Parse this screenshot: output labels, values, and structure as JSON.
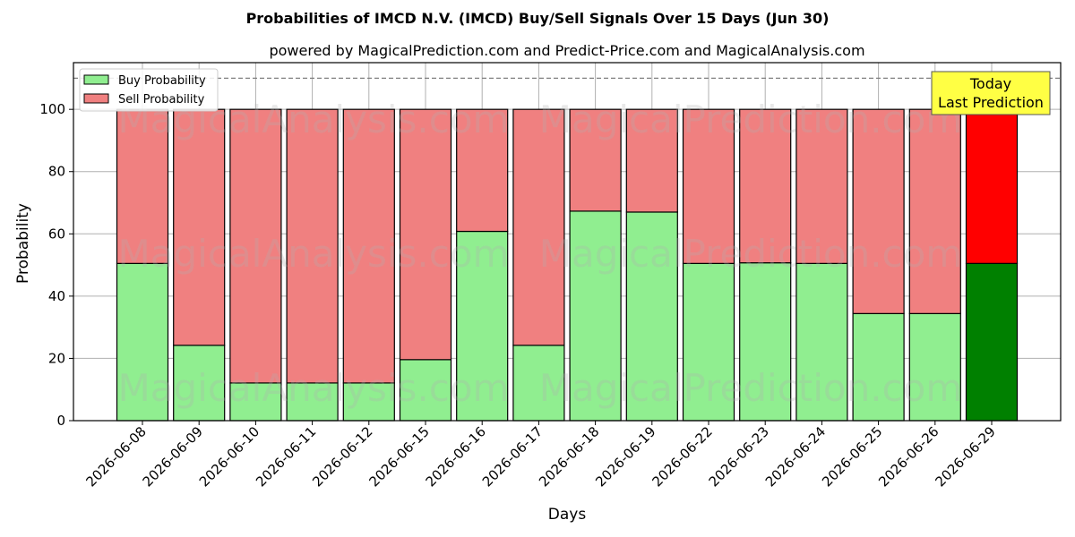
{
  "chart_data": {
    "type": "bar",
    "stacked": true,
    "title": "Probabilities of IMCD N.V. (IMCD) Buy/Sell Signals Over 15 Days (Jun 30)",
    "subtitle": "powered by MagicalPrediction.com and Predict-Price.com and MagicalAnalysis.com",
    "xlabel": "Days",
    "ylabel": "Probability",
    "ylim": [
      0,
      115
    ],
    "yticks": [
      0,
      20,
      40,
      60,
      80,
      100
    ],
    "grid": true,
    "legend_placement": "top-left",
    "reference_line": 110,
    "categories": [
      "2026-06-08",
      "2026-06-09",
      "2026-06-10",
      "2026-06-11",
      "2026-06-12",
      "2026-06-15",
      "2026-06-16",
      "2026-06-17",
      "2026-06-18",
      "2026-06-19",
      "2026-06-22",
      "2026-06-23",
      "2026-06-24",
      "2026-06-25",
      "2026-06-26",
      "2026-06-29"
    ],
    "series": [
      {
        "name": "Buy Probability",
        "color": "#90ee90",
        "highlight_color": "#008000",
        "values": [
          50.5,
          24.2,
          12.1,
          12.1,
          12.1,
          19.6,
          60.8,
          24.2,
          67.3,
          67.0,
          50.5,
          50.7,
          50.5,
          34.4,
          34.4,
          50.5
        ]
      },
      {
        "name": "Sell Probability",
        "color": "#f08080",
        "highlight_color": "#ff0000",
        "values": [
          49.5,
          75.8,
          87.9,
          87.9,
          87.9,
          80.4,
          39.2,
          75.8,
          32.7,
          33.0,
          49.5,
          49.3,
          49.5,
          65.6,
          65.6,
          49.5
        ]
      }
    ],
    "highlight_index": 15,
    "annotation": {
      "lines": [
        "Today",
        "Last Prediction"
      ],
      "color": "#ffff44"
    },
    "watermarks": [
      "MagicalAnalysis.com",
      "MagicalPrediction.com"
    ]
  }
}
